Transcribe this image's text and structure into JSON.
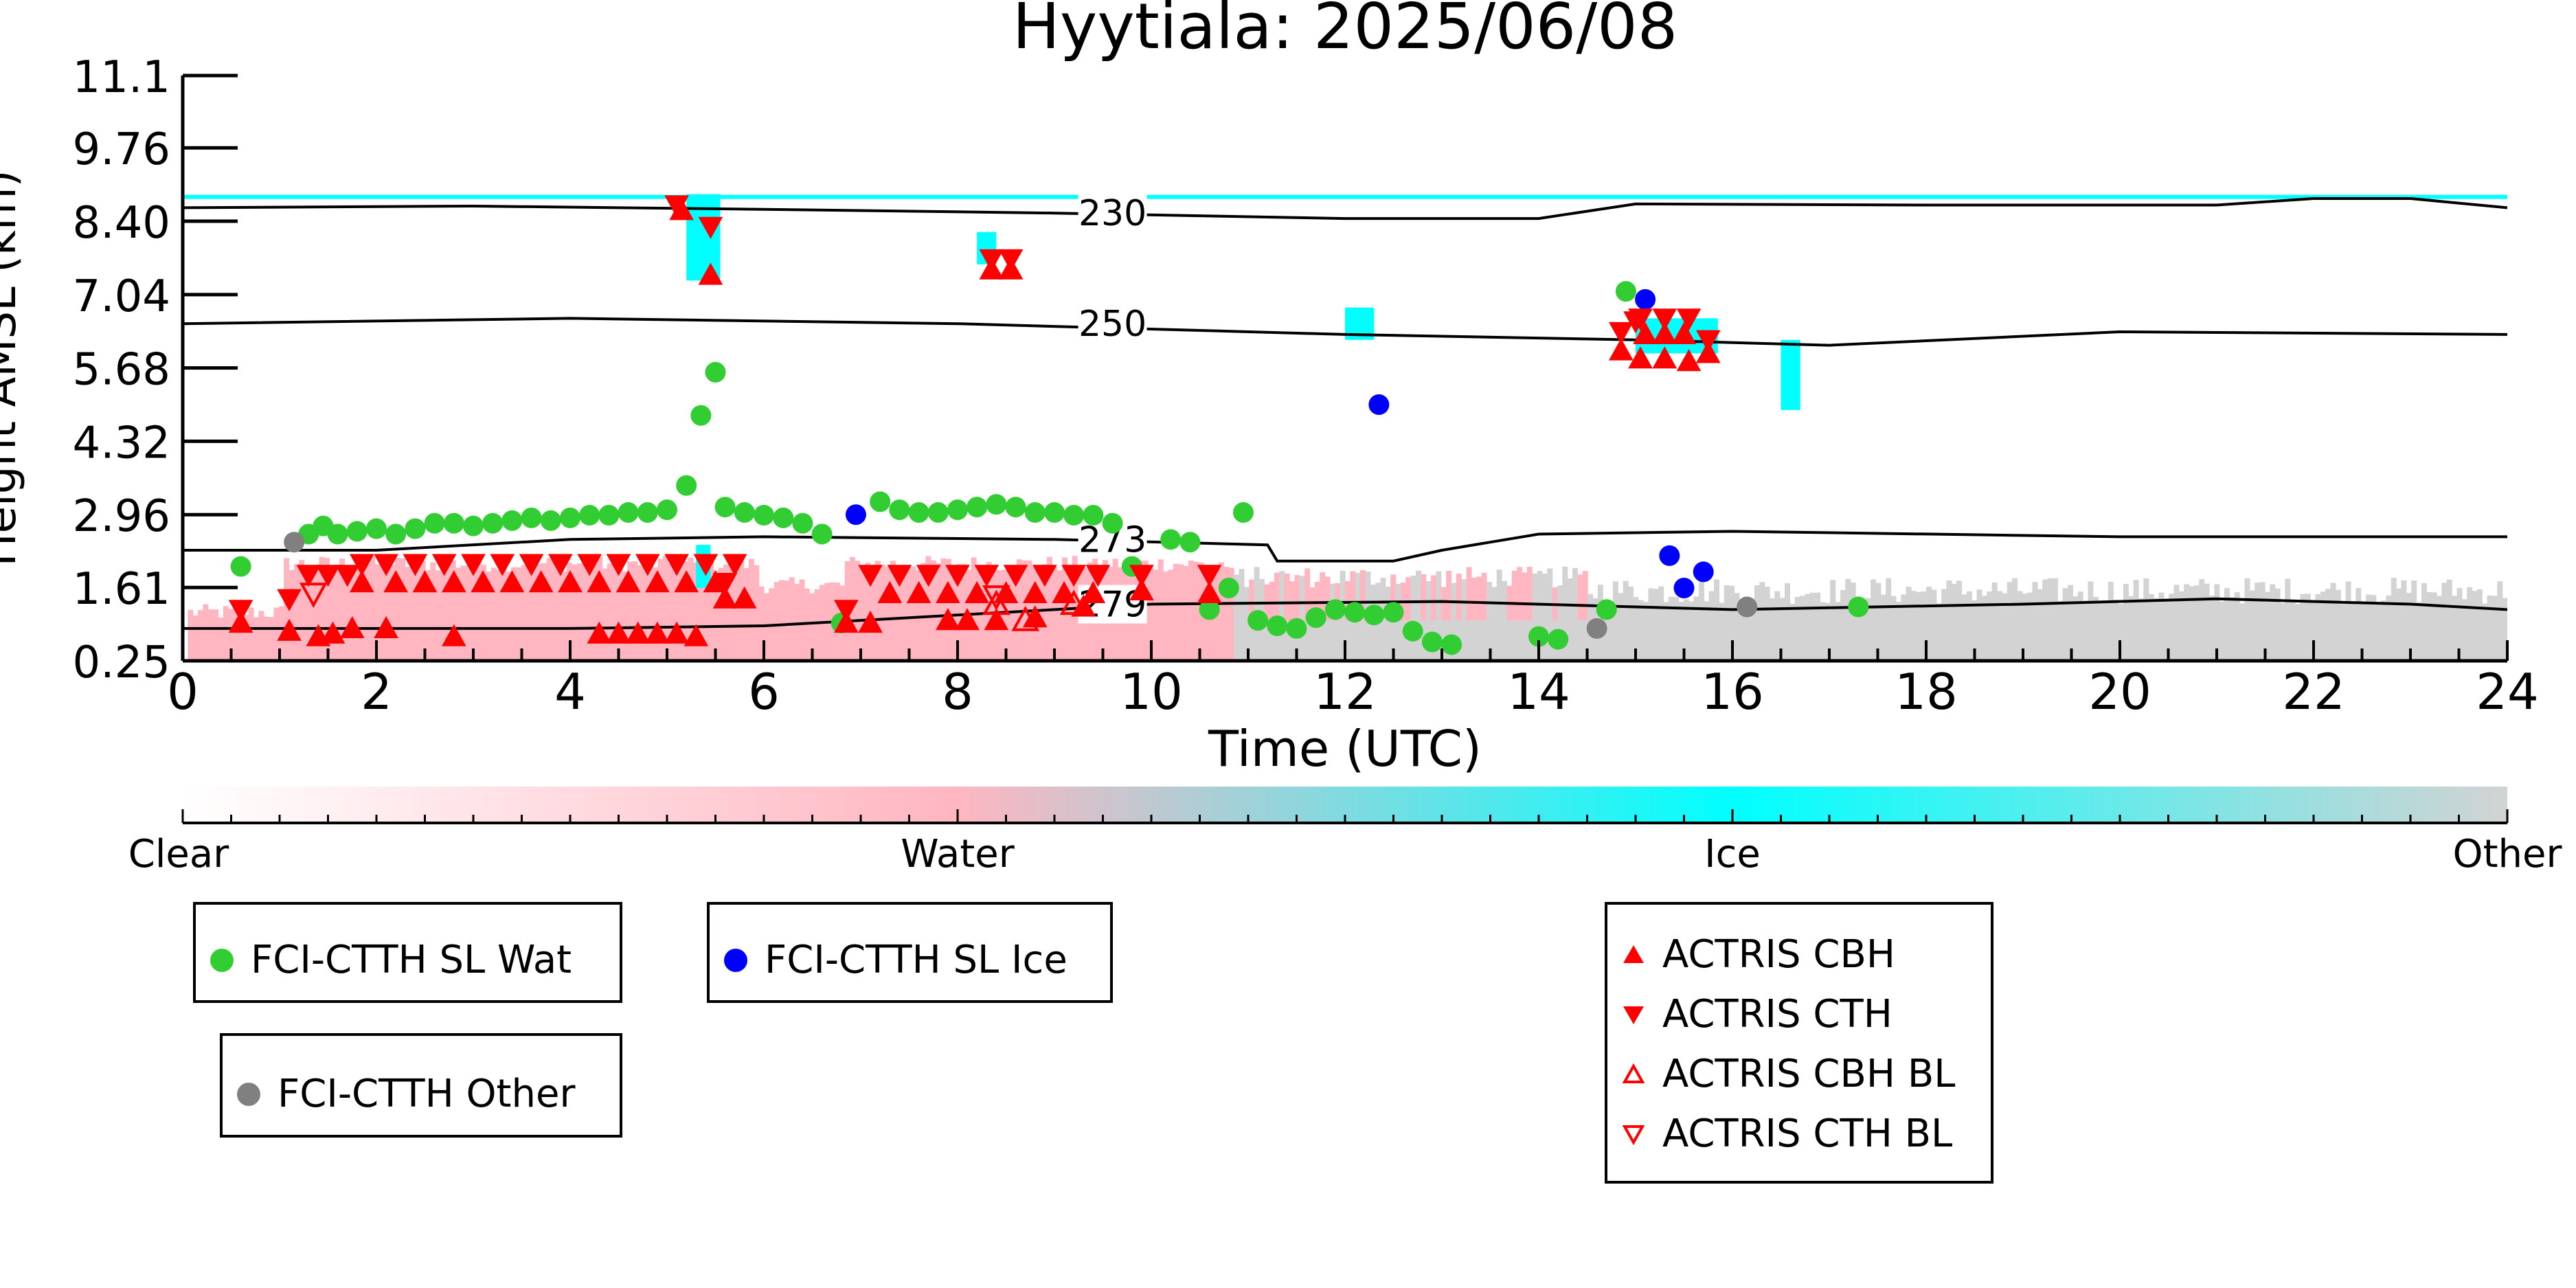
{
  "chart_data": {
    "type": "scatter",
    "title": "Hyytiala: 2025/06/08",
    "xlabel": "Time (UTC)",
    "ylabel": "Height AMSL (km)",
    "xlim": [
      0,
      24
    ],
    "ylim": [
      0.25,
      11.1
    ],
    "xticks": [
      "0",
      "2",
      "4",
      "6",
      "8",
      "10",
      "12",
      "14",
      "16",
      "18",
      "20",
      "22",
      "24"
    ],
    "yticks": [
      "0.25",
      "1.61",
      "2.96",
      "4.32",
      "5.68",
      "7.04",
      "8.40",
      "9.76",
      "11.1"
    ],
    "grid": false,
    "colorbar": {
      "labels": [
        "Clear",
        "Water",
        "Ice",
        "Other"
      ],
      "colors": [
        "#ffffff",
        "#ffb6c1",
        "#00ffff",
        "#d3d3d3"
      ]
    },
    "temperature_contours": [
      {
        "label": "230",
        "label_x": 9.6,
        "points": [
          [
            0,
            8.65
          ],
          [
            3,
            8.68
          ],
          [
            6,
            8.62
          ],
          [
            9,
            8.55
          ],
          [
            12,
            8.45
          ],
          [
            14,
            8.45
          ],
          [
            15,
            8.72
          ],
          [
            18,
            8.7
          ],
          [
            21,
            8.7
          ],
          [
            22,
            8.82
          ],
          [
            23,
            8.82
          ],
          [
            24,
            8.65
          ]
        ]
      },
      {
        "label": "250",
        "label_x": 9.6,
        "points": [
          [
            0,
            6.5
          ],
          [
            4,
            6.6
          ],
          [
            8,
            6.5
          ],
          [
            12,
            6.3
          ],
          [
            15,
            6.2
          ],
          [
            17,
            6.1
          ],
          [
            20,
            6.35
          ],
          [
            24,
            6.3
          ]
        ]
      },
      {
        "label": "273",
        "label_x": 9.6,
        "points": [
          [
            0,
            2.3
          ],
          [
            2,
            2.3
          ],
          [
            4,
            2.5
          ],
          [
            6,
            2.55
          ],
          [
            9,
            2.5
          ],
          [
            11.2,
            2.4
          ],
          [
            11.3,
            2.1
          ],
          [
            12.5,
            2.1
          ],
          [
            13,
            2.3
          ],
          [
            14,
            2.6
          ],
          [
            16,
            2.65
          ],
          [
            20,
            2.55
          ],
          [
            24,
            2.55
          ]
        ]
      },
      {
        "label": "279",
        "label_x": 9.6,
        "points": [
          [
            0,
            0.85
          ],
          [
            4,
            0.85
          ],
          [
            6,
            0.9
          ],
          [
            8,
            1.1
          ],
          [
            10,
            1.3
          ],
          [
            13,
            1.35
          ],
          [
            16,
            1.2
          ],
          [
            19,
            1.3
          ],
          [
            21,
            1.4
          ],
          [
            23,
            1.3
          ],
          [
            24,
            1.2
          ]
        ]
      }
    ],
    "series": [
      {
        "name": "FCI-CTTH SL Wat",
        "marker": "circle",
        "color": "#32cd32",
        "points": [
          [
            0.6,
            2.0
          ],
          [
            1.3,
            2.6
          ],
          [
            1.45,
            2.75
          ],
          [
            1.6,
            2.6
          ],
          [
            1.8,
            2.65
          ],
          [
            2.0,
            2.7
          ],
          [
            2.2,
            2.6
          ],
          [
            2.4,
            2.7
          ],
          [
            2.6,
            2.8
          ],
          [
            2.8,
            2.8
          ],
          [
            3.0,
            2.75
          ],
          [
            3.2,
            2.8
          ],
          [
            3.4,
            2.85
          ],
          [
            3.6,
            2.9
          ],
          [
            3.8,
            2.85
          ],
          [
            4.0,
            2.9
          ],
          [
            4.2,
            2.95
          ],
          [
            4.4,
            2.95
          ],
          [
            4.6,
            3.0
          ],
          [
            4.8,
            3.0
          ],
          [
            5.0,
            3.05
          ],
          [
            5.2,
            3.5
          ],
          [
            5.35,
            4.8
          ],
          [
            5.5,
            5.6
          ],
          [
            5.6,
            3.1
          ],
          [
            5.8,
            3.0
          ],
          [
            6.0,
            2.95
          ],
          [
            6.2,
            2.9
          ],
          [
            6.4,
            2.8
          ],
          [
            6.6,
            2.6
          ],
          [
            6.8,
            0.95
          ],
          [
            7.2,
            3.2
          ],
          [
            7.4,
            3.05
          ],
          [
            7.6,
            3.0
          ],
          [
            7.8,
            3.0
          ],
          [
            8.0,
            3.05
          ],
          [
            8.2,
            3.1
          ],
          [
            8.4,
            3.15
          ],
          [
            8.6,
            3.1
          ],
          [
            8.8,
            3.0
          ],
          [
            9.0,
            3.0
          ],
          [
            9.2,
            2.95
          ],
          [
            9.4,
            2.95
          ],
          [
            9.6,
            2.8
          ],
          [
            9.8,
            2.0
          ],
          [
            10.2,
            2.5
          ],
          [
            10.4,
            2.45
          ],
          [
            10.6,
            1.2
          ],
          [
            10.8,
            1.6
          ],
          [
            10.95,
            3.0
          ],
          [
            11.1,
            1.0
          ],
          [
            11.3,
            0.9
          ],
          [
            11.5,
            0.85
          ],
          [
            11.7,
            1.05
          ],
          [
            11.9,
            1.2
          ],
          [
            12.1,
            1.15
          ],
          [
            12.3,
            1.1
          ],
          [
            12.5,
            1.15
          ],
          [
            12.7,
            0.8
          ],
          [
            12.9,
            0.6
          ],
          [
            13.1,
            0.55
          ],
          [
            14.0,
            0.7
          ],
          [
            14.2,
            0.65
          ],
          [
            14.7,
            1.2
          ],
          [
            14.9,
            7.1
          ],
          [
            17.3,
            1.25
          ]
        ]
      },
      {
        "name": "FCI-CTTH SL Ice",
        "marker": "circle",
        "color": "#0000ff",
        "points": [
          [
            6.95,
            2.96
          ],
          [
            12.35,
            5.0
          ],
          [
            15.1,
            6.95
          ],
          [
            15.35,
            2.2
          ],
          [
            15.5,
            1.6
          ],
          [
            15.7,
            1.9
          ]
        ]
      },
      {
        "name": "FCI-CTTH Other",
        "marker": "circle",
        "color": "#808080",
        "points": [
          [
            1.15,
            2.45
          ],
          [
            14.6,
            0.85
          ],
          [
            16.15,
            1.25
          ]
        ]
      },
      {
        "name": "ACTRIS CBH",
        "marker": "triangle-up",
        "color": "#ff0000",
        "filled": true,
        "points": [
          [
            0.6,
            0.95
          ],
          [
            1.1,
            0.8
          ],
          [
            1.4,
            0.7
          ],
          [
            1.55,
            0.75
          ],
          [
            1.75,
            0.85
          ],
          [
            2.1,
            0.85
          ],
          [
            2.8,
            0.7
          ],
          [
            1.85,
            1.7
          ],
          [
            2.2,
            1.7
          ],
          [
            2.5,
            1.7
          ],
          [
            2.8,
            1.7
          ],
          [
            3.1,
            1.7
          ],
          [
            3.4,
            1.7
          ],
          [
            3.7,
            1.7
          ],
          [
            4.0,
            1.7
          ],
          [
            4.3,
            1.7
          ],
          [
            4.6,
            1.7
          ],
          [
            4.9,
            1.7
          ],
          [
            5.2,
            1.7
          ],
          [
            5.5,
            1.7
          ],
          [
            4.3,
            0.75
          ],
          [
            4.5,
            0.75
          ],
          [
            4.7,
            0.75
          ],
          [
            4.9,
            0.75
          ],
          [
            5.1,
            0.75
          ],
          [
            5.3,
            0.7
          ],
          [
            5.15,
            8.6
          ],
          [
            5.45,
            7.4
          ],
          [
            5.6,
            1.4
          ],
          [
            5.8,
            1.4
          ],
          [
            6.85,
            0.95
          ],
          [
            7.1,
            0.95
          ],
          [
            7.3,
            1.5
          ],
          [
            7.6,
            1.5
          ],
          [
            7.9,
            1.5
          ],
          [
            8.2,
            1.5
          ],
          [
            8.5,
            1.5
          ],
          [
            8.8,
            1.5
          ],
          [
            9.1,
            1.5
          ],
          [
            9.4,
            1.5
          ],
          [
            7.9,
            1.0
          ],
          [
            8.1,
            1.0
          ],
          [
            8.4,
            1.0
          ],
          [
            8.8,
            1.05
          ],
          [
            9.3,
            1.25
          ],
          [
            9.9,
            1.55
          ],
          [
            10.6,
            1.5
          ],
          [
            8.35,
            7.5
          ],
          [
            8.55,
            7.5
          ],
          [
            14.85,
            6.0
          ],
          [
            15.05,
            5.85
          ],
          [
            15.3,
            5.85
          ],
          [
            15.55,
            5.8
          ],
          [
            15.75,
            5.95
          ],
          [
            15.1,
            6.3
          ],
          [
            15.3,
            6.3
          ],
          [
            15.5,
            6.3
          ]
        ]
      },
      {
        "name": "ACTRIS CTH",
        "marker": "triangle-down",
        "color": "#ff0000",
        "filled": true,
        "points": [
          [
            0.6,
            1.2
          ],
          [
            1.1,
            1.4
          ],
          [
            1.3,
            1.85
          ],
          [
            1.5,
            1.85
          ],
          [
            1.7,
            1.85
          ],
          [
            1.85,
            2.05
          ],
          [
            2.1,
            2.05
          ],
          [
            2.4,
            2.05
          ],
          [
            2.7,
            2.05
          ],
          [
            3.0,
            2.05
          ],
          [
            3.3,
            2.05
          ],
          [
            3.6,
            2.05
          ],
          [
            3.9,
            2.05
          ],
          [
            4.2,
            2.05
          ],
          [
            4.5,
            2.05
          ],
          [
            4.8,
            2.05
          ],
          [
            5.1,
            2.05
          ],
          [
            5.4,
            2.05
          ],
          [
            5.7,
            2.05
          ],
          [
            5.1,
            8.7
          ],
          [
            5.45,
            8.3
          ],
          [
            5.6,
            1.7
          ],
          [
            6.85,
            1.2
          ],
          [
            7.1,
            1.85
          ],
          [
            7.4,
            1.85
          ],
          [
            7.7,
            1.85
          ],
          [
            8.0,
            1.85
          ],
          [
            8.3,
            1.85
          ],
          [
            8.6,
            1.85
          ],
          [
            8.9,
            1.85
          ],
          [
            9.2,
            1.85
          ],
          [
            9.45,
            1.85
          ],
          [
            9.9,
            1.85
          ],
          [
            10.6,
            1.85
          ],
          [
            8.35,
            7.7
          ],
          [
            8.55,
            7.7
          ],
          [
            14.85,
            6.35
          ],
          [
            15.05,
            6.6
          ],
          [
            15.3,
            6.6
          ],
          [
            15.55,
            6.6
          ],
          [
            15.75,
            6.2
          ],
          [
            15.0,
            6.55
          ]
        ]
      },
      {
        "name": "ACTRIS CBH BL",
        "marker": "triangle-up",
        "color": "#ff0000",
        "filled": false,
        "points": [
          [
            8.4,
            1.3
          ],
          [
            8.7,
            1.0
          ],
          [
            9.2,
            1.3
          ]
        ]
      },
      {
        "name": "ACTRIS CTH BL",
        "marker": "triangle-down",
        "color": "#ff0000",
        "filled": false,
        "points": [
          [
            1.35,
            1.5
          ],
          [
            8.4,
            1.45
          ]
        ]
      }
    ]
  },
  "legend": {
    "wat": "FCI-CTTH SL Wat",
    "ice": "FCI-CTTH SL Ice",
    "other": "FCI-CTTH Other",
    "cbh": "ACTRIS CBH",
    "cth": "ACTRIS CTH",
    "cbh_bl": "ACTRIS CBH BL",
    "cth_bl": "ACTRIS CTH BL"
  }
}
